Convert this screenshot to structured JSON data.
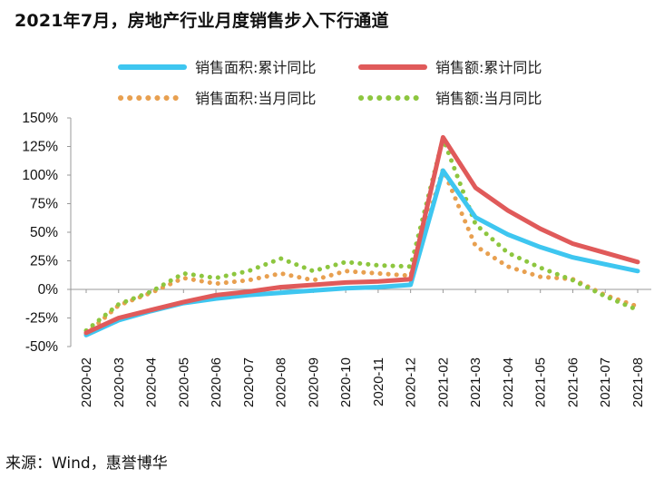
{
  "title": "2021年7月，房地产行业月度销售步入下行通道",
  "source": "来源：Wind，惠誉博华",
  "chart_data": {
    "type": "line",
    "x": [
      "2020-02",
      "2020-03",
      "2020-04",
      "2020-05",
      "2020-06",
      "2020-07",
      "2020-08",
      "2020-09",
      "2020-10",
      "2020-11",
      "2020-12",
      "2021-02",
      "2021-03",
      "2021-04",
      "2021-05",
      "2021-06",
      "2021-07",
      "2021-08"
    ],
    "ylim": [
      -50,
      150
    ],
    "yticks": [
      "-50%",
      "-25%",
      "0%",
      "25%",
      "50%",
      "75%",
      "100%",
      "125%",
      "150%"
    ],
    "ytick_values": [
      -50,
      -25,
      0,
      25,
      50,
      75,
      100,
      125,
      150
    ],
    "grid": false,
    "legend_position": "top",
    "series": [
      {
        "name": "销售面积:累计同比",
        "style": "solid",
        "color": "#3EC6F0",
        "values": [
          -40,
          -27,
          -19,
          -12,
          -8,
          -5,
          -3,
          -1,
          1,
          2,
          4,
          104,
          63,
          48,
          37,
          28,
          22,
          16
        ]
      },
      {
        "name": "销售额:累计同比",
        "style": "solid",
        "color": "#E05A5A",
        "values": [
          -38,
          -25,
          -18,
          -11,
          -5,
          -2,
          2,
          4,
          6,
          7,
          9,
          133,
          89,
          69,
          53,
          40,
          32,
          24
        ]
      },
      {
        "name": "销售面积:当月同比",
        "style": "dotted",
        "color": "#E8A050",
        "values": [
          -39,
          -14,
          -3,
          10,
          5,
          8,
          14,
          8,
          16,
          14,
          12,
          105,
          38,
          20,
          11,
          9,
          -5,
          -15
        ]
      },
      {
        "name": "销售额:当月同比",
        "style": "dotted",
        "color": "#8DC63F",
        "values": [
          -36,
          -13,
          -2,
          14,
          10,
          16,
          27,
          16,
          24,
          21,
          20,
          132,
          57,
          32,
          19,
          8,
          -6,
          -18
        ]
      }
    ]
  }
}
